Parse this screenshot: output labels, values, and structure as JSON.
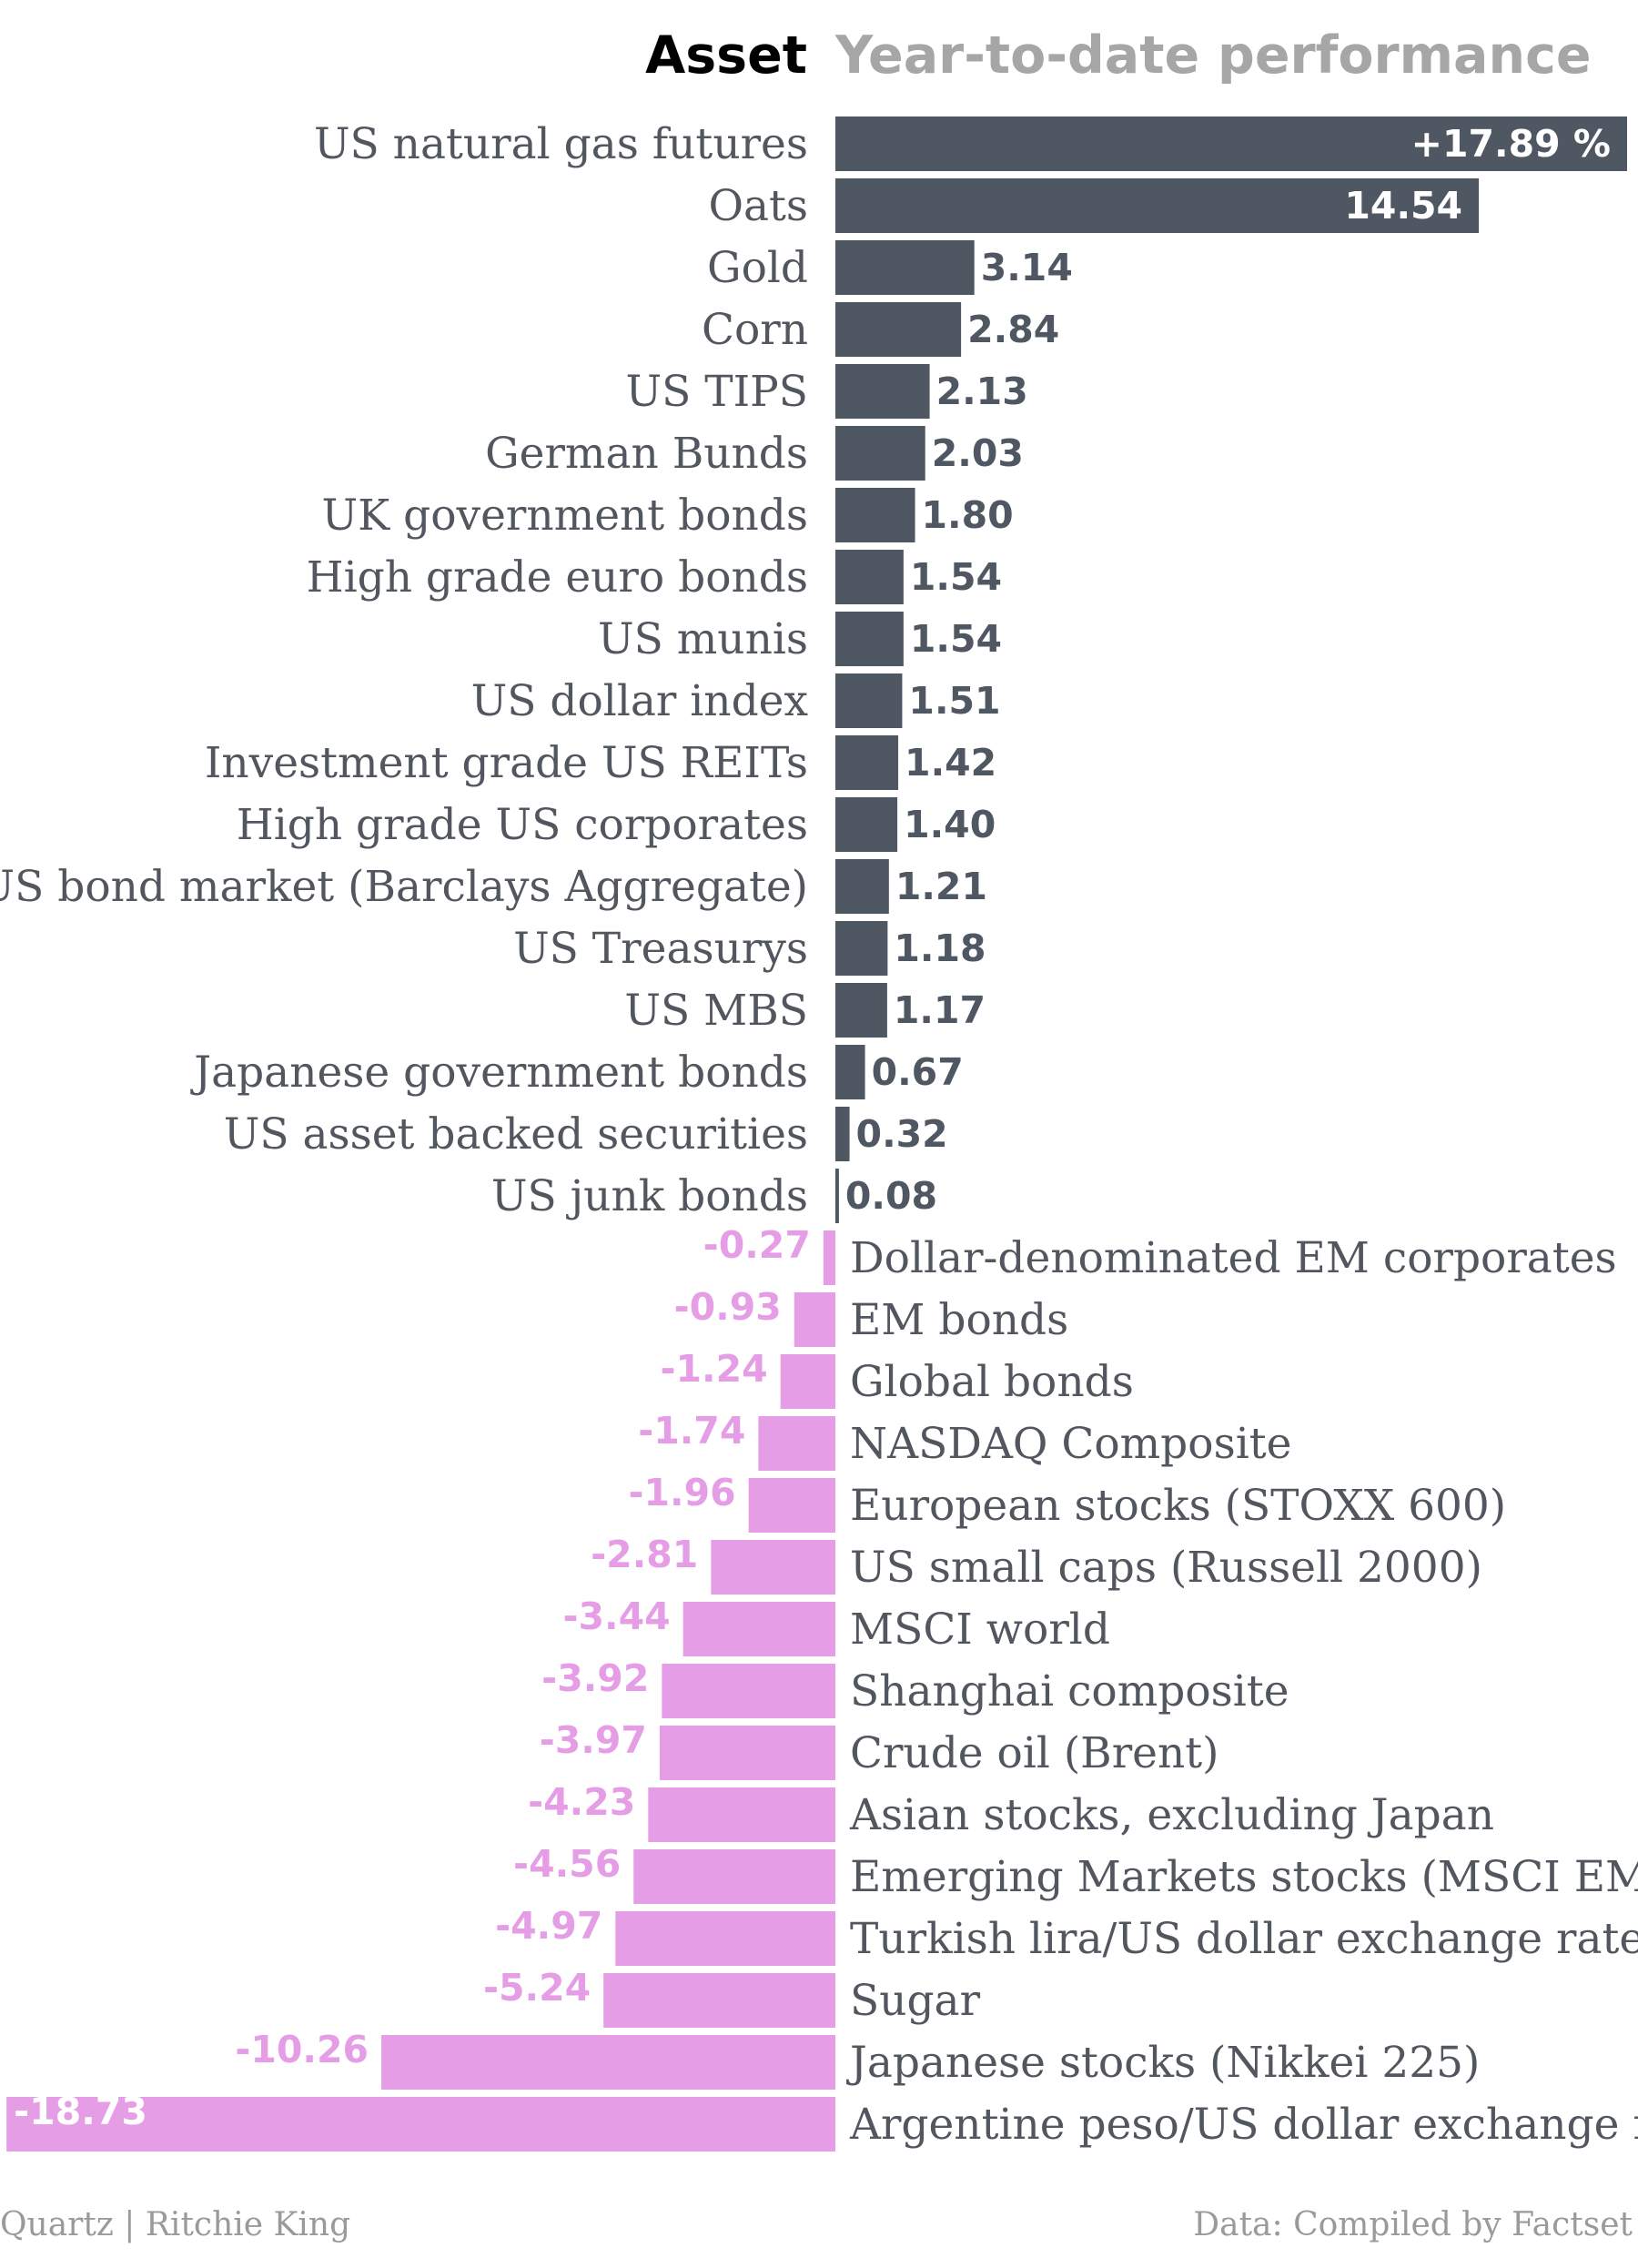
{
  "chart_data": {
    "type": "bar",
    "orientation": "horizontal",
    "header": {
      "asset": "Asset",
      "title": "Year-to-date performance"
    },
    "source": "Data: Compiled by Factset",
    "credit": "Quartz | Ritchie King",
    "unit_suffix": "%",
    "colors": {
      "positive": "#4f5763",
      "negative": "#e59ee5",
      "label": "#51565f"
    },
    "bars": [
      {
        "category": "US natural gas futures",
        "value": 17.89,
        "label": "+17.89 %"
      },
      {
        "category": "Oats",
        "value": 14.54,
        "label": "14.54"
      },
      {
        "category": "Gold",
        "value": 3.14,
        "label": "3.14"
      },
      {
        "category": "Corn",
        "value": 2.84,
        "label": "2.84"
      },
      {
        "category": "US TIPS",
        "value": 2.13,
        "label": "2.13"
      },
      {
        "category": "German Bunds",
        "value": 2.03,
        "label": "2.03"
      },
      {
        "category": "UK government bonds",
        "value": 1.8,
        "label": "1.80"
      },
      {
        "category": "High grade euro bonds",
        "value": 1.54,
        "label": "1.54"
      },
      {
        "category": "US munis",
        "value": 1.54,
        "label": "1.54"
      },
      {
        "category": "US dollar index",
        "value": 1.51,
        "label": "1.51"
      },
      {
        "category": "Investment grade US REITs",
        "value": 1.42,
        "label": "1.42"
      },
      {
        "category": "High grade US corporates",
        "value": 1.4,
        "label": "1.40"
      },
      {
        "category": "US bond market (Barclays Aggregate)",
        "value": 1.21,
        "label": "1.21"
      },
      {
        "category": "US Treasurys",
        "value": 1.18,
        "label": "1.18"
      },
      {
        "category": "US MBS",
        "value": 1.17,
        "label": "1.17"
      },
      {
        "category": "Japanese government bonds",
        "value": 0.67,
        "label": "0.67"
      },
      {
        "category": "US asset backed securities",
        "value": 0.32,
        "label": "0.32"
      },
      {
        "category": "US junk bonds",
        "value": 0.08,
        "label": "0.08"
      },
      {
        "category": "Dollar-denominated EM corporates",
        "value": -0.27,
        "label": "-0.27"
      },
      {
        "category": "EM bonds",
        "value": -0.93,
        "label": "-0.93"
      },
      {
        "category": "Global bonds",
        "value": -1.24,
        "label": "-1.24"
      },
      {
        "category": "NASDAQ Composite",
        "value": -1.74,
        "label": "-1.74"
      },
      {
        "category": "European stocks (STOXX 600)",
        "value": -1.96,
        "label": "-1.96"
      },
      {
        "category": "US small caps (Russell 2000)",
        "value": -2.81,
        "label": "-2.81"
      },
      {
        "category": "MSCI world",
        "value": -3.44,
        "label": "-3.44"
      },
      {
        "category": "Shanghai composite",
        "value": -3.92,
        "label": "-3.92"
      },
      {
        "category": "Crude oil (Brent)",
        "value": -3.97,
        "label": "-3.97"
      },
      {
        "category": "Asian stocks, excluding Japan",
        "value": -4.23,
        "label": "-4.23"
      },
      {
        "category": "Emerging Markets stocks (MSCI EM)",
        "value": -4.56,
        "label": "-4.56"
      },
      {
        "category": "Turkish lira/US dollar exchange rate",
        "value": -4.97,
        "label": "-4.97"
      },
      {
        "category": "Sugar",
        "value": -5.24,
        "label": "-5.24"
      },
      {
        "category": "Japanese stocks (Nikkei 225)",
        "value": -10.26,
        "label": "-10.26"
      },
      {
        "category": "Argentine peso/US dollar exchange rate",
        "value": -18.73,
        "label": "-18.73"
      }
    ],
    "xlim": [
      -18.73,
      17.89
    ]
  }
}
